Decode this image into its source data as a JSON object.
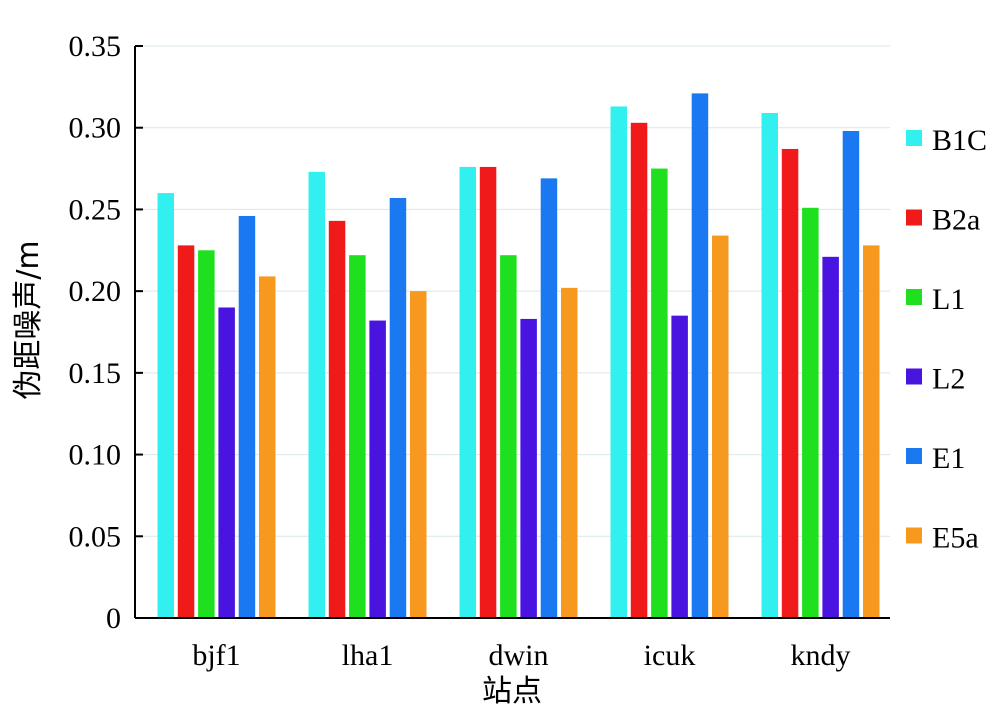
{
  "chart_data": {
    "type": "bar",
    "title": "",
    "xlabel": "站点",
    "ylabel": "伪距噪声/m",
    "ylim": [
      0,
      0.35
    ],
    "yticks": [
      "0",
      "0.05",
      "0.10",
      "0.15",
      "0.20",
      "0.25",
      "0.30",
      "0.35"
    ],
    "ytick_values": [
      0,
      0.05,
      0.1,
      0.15,
      0.2,
      0.25,
      0.3,
      0.35
    ],
    "grid": true,
    "legend_position": "right",
    "categories": [
      "bjf1",
      "lha1",
      "dwin",
      "icuk",
      "kndy"
    ],
    "series": [
      {
        "name": "B1C",
        "color": "#33f0f0",
        "values": [
          0.26,
          0.273,
          0.276,
          0.313,
          0.309
        ]
      },
      {
        "name": "B2a",
        "color": "#f01a1a",
        "values": [
          0.228,
          0.243,
          0.276,
          0.303,
          0.287
        ]
      },
      {
        "name": "L1",
        "color": "#1ee01e",
        "values": [
          0.225,
          0.222,
          0.222,
          0.275,
          0.251
        ]
      },
      {
        "name": "L2",
        "color": "#4a14e0",
        "values": [
          0.19,
          0.182,
          0.183,
          0.185,
          0.221
        ]
      },
      {
        "name": "E1",
        "color": "#1a78f0",
        "values": [
          0.246,
          0.257,
          0.269,
          0.321,
          0.298
        ]
      },
      {
        "name": "E5a",
        "color": "#f7981f",
        "values": [
          0.209,
          0.2,
          0.202,
          0.234,
          0.228
        ]
      }
    ]
  }
}
